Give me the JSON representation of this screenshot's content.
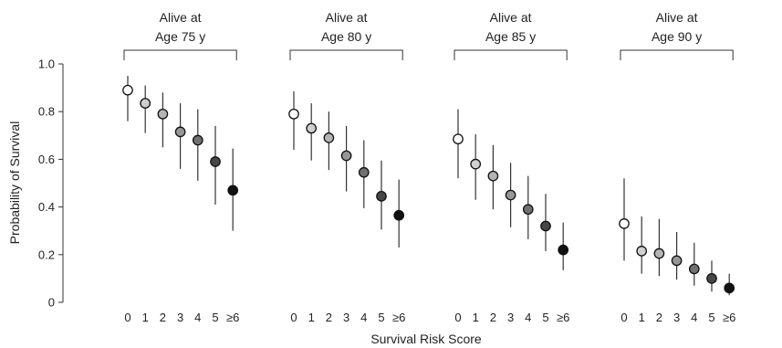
{
  "chart_data": {
    "type": "scatter",
    "ylabel": "Probability of Survival",
    "xlabel": "Survival Risk Score",
    "ylim": [
      0,
      1.0
    ],
    "yticks": [
      0,
      0.2,
      0.4,
      0.6,
      0.8,
      1.0
    ],
    "ytick_labels": [
      "0",
      "0.2",
      "0.4",
      "0.6",
      "0.8",
      "1.0"
    ],
    "categories": [
      "0",
      "1",
      "2",
      "3",
      "4",
      "5",
      "≥6"
    ],
    "marker_colors": [
      "#ffffff",
      "#d0d0d0",
      "#b4b4b4",
      "#969696",
      "#707070",
      "#474747",
      "#111111"
    ],
    "panels": [
      {
        "label_line1": "Alive at",
        "label_line2": "Age 75 y",
        "points": [
          {
            "y": 0.89,
            "lo": 0.76,
            "hi": 0.95
          },
          {
            "y": 0.835,
            "lo": 0.71,
            "hi": 0.91
          },
          {
            "y": 0.79,
            "lo": 0.65,
            "hi": 0.88
          },
          {
            "y": 0.715,
            "lo": 0.56,
            "hi": 0.835
          },
          {
            "y": 0.68,
            "lo": 0.51,
            "hi": 0.81
          },
          {
            "y": 0.59,
            "lo": 0.41,
            "hi": 0.74
          },
          {
            "y": 0.47,
            "lo": 0.3,
            "hi": 0.645
          }
        ]
      },
      {
        "label_line1": "Alive at",
        "label_line2": "Age 80 y",
        "points": [
          {
            "y": 0.79,
            "lo": 0.64,
            "hi": 0.885
          },
          {
            "y": 0.73,
            "lo": 0.595,
            "hi": 0.835
          },
          {
            "y": 0.69,
            "lo": 0.555,
            "hi": 0.8
          },
          {
            "y": 0.615,
            "lo": 0.465,
            "hi": 0.74
          },
          {
            "y": 0.545,
            "lo": 0.395,
            "hi": 0.68
          },
          {
            "y": 0.445,
            "lo": 0.305,
            "hi": 0.595
          },
          {
            "y": 0.365,
            "lo": 0.23,
            "hi": 0.515
          }
        ]
      },
      {
        "label_line1": "Alive at",
        "label_line2": "Age 85 y",
        "points": [
          {
            "y": 0.685,
            "lo": 0.52,
            "hi": 0.81
          },
          {
            "y": 0.58,
            "lo": 0.43,
            "hi": 0.705
          },
          {
            "y": 0.53,
            "lo": 0.39,
            "hi": 0.66
          },
          {
            "y": 0.45,
            "lo": 0.315,
            "hi": 0.585
          },
          {
            "y": 0.39,
            "lo": 0.265,
            "hi": 0.53
          },
          {
            "y": 0.32,
            "lo": 0.215,
            "hi": 0.455
          },
          {
            "y": 0.22,
            "lo": 0.135,
            "hi": 0.335
          }
        ]
      },
      {
        "label_line1": "Alive at",
        "label_line2": "Age 90 y",
        "points": [
          {
            "y": 0.33,
            "lo": 0.175,
            "hi": 0.52
          },
          {
            "y": 0.215,
            "lo": 0.12,
            "hi": 0.36
          },
          {
            "y": 0.205,
            "lo": 0.11,
            "hi": 0.35
          },
          {
            "y": 0.175,
            "lo": 0.095,
            "hi": 0.295
          },
          {
            "y": 0.14,
            "lo": 0.07,
            "hi": 0.25
          },
          {
            "y": 0.1,
            "lo": 0.045,
            "hi": 0.175
          },
          {
            "y": 0.06,
            "lo": 0.03,
            "hi": 0.12
          }
        ]
      }
    ]
  }
}
